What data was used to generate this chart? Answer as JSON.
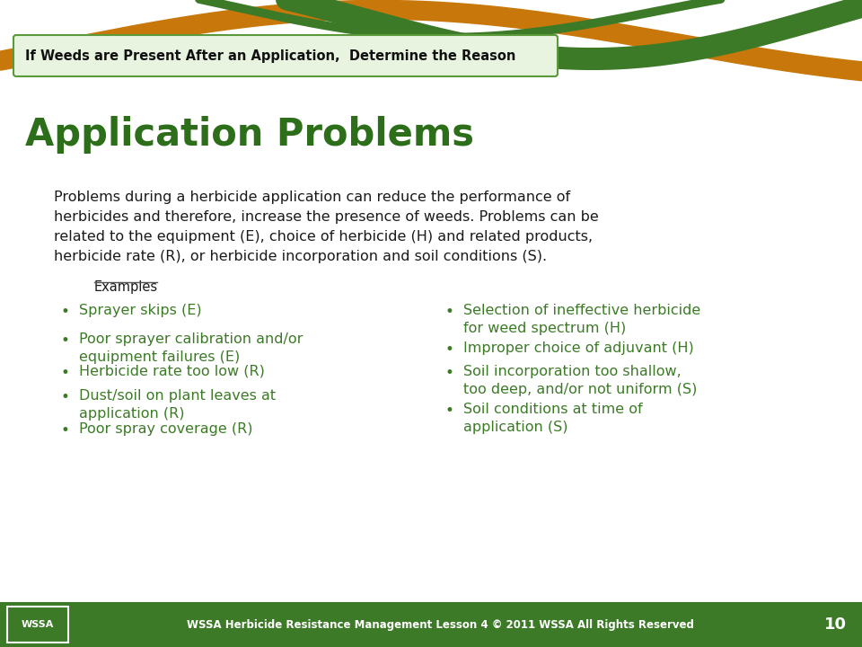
{
  "bg_color": "#ffffff",
  "footer_color": "#3d7a28",
  "footer_text": "WSSA Herbicide Resistance Management Lesson 4 © 2011 WSSA All Rights Reserved",
  "footer_page": "10",
  "footer_text_color": "#ffffff",
  "banner_box_text": "If Weeds are Present After an Application,  Determine the Reason",
  "banner_box_bg": "#e8f4e0",
  "banner_box_border": "#5a9a3a",
  "title": "Application Problems",
  "title_color": "#2d6e1a",
  "body_line1": "Problems during a herbicide application can reduce the performance of",
  "body_line2": "herbicides and therefore, increase the presence of weeds. Problems can be",
  "body_line3": "related to the equipment (E), choice of herbicide (H) and related products,",
  "body_line4": "herbicide rate (R), or herbicide incorporation and soil conditions (S).",
  "body_color": "#1a1a1a",
  "examples_label": "Examples",
  "examples_color": "#1a1a1a",
  "bullet_color": "#3d7a28",
  "left_bullets": [
    "Sprayer skips (E)",
    "Poor sprayer calibration and/or\nequipment failures (E)",
    "Herbicide rate too low (R)",
    "Dust/soil on plant leaves at\napplication (R)",
    "Poor spray coverage (R)"
  ],
  "right_bullets": [
    "Selection of ineffective herbicide\nfor weed spectrum (H)",
    "Improper choice of adjuvant (H)",
    "Soil incorporation too shallow,\ntoo deep, and/or not uniform (S)",
    "Soil conditions at time of\napplication (S)"
  ],
  "swirl_green_dark": "#3d7a28",
  "swirl_green_light": "#4a8a30",
  "swirl_orange": "#c8780a",
  "wssa_logo_color": "#3d7a28"
}
